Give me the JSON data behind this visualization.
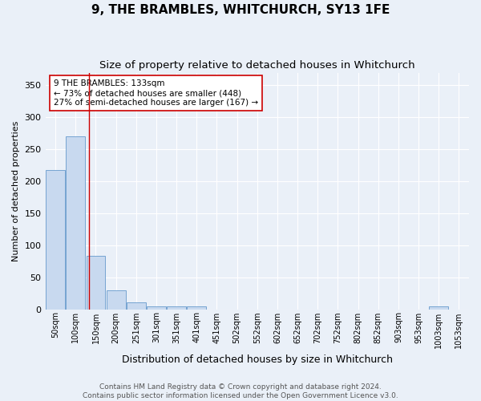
{
  "title": "9, THE BRAMBLES, WHITCHURCH, SY13 1FE",
  "subtitle": "Size of property relative to detached houses in Whitchurch",
  "xlabel": "Distribution of detached houses by size in Whitchurch",
  "ylabel": "Number of detached properties",
  "bin_labels": [
    "50sqm",
    "100sqm",
    "150sqm",
    "200sqm",
    "251sqm",
    "301sqm",
    "351sqm",
    "401sqm",
    "451sqm",
    "502sqm",
    "552sqm",
    "602sqm",
    "652sqm",
    "702sqm",
    "752sqm",
    "802sqm",
    "852sqm",
    "903sqm",
    "953sqm",
    "1003sqm",
    "1053sqm"
  ],
  "bar_heights": [
    218,
    270,
    84,
    29,
    11,
    5,
    4,
    4,
    0,
    0,
    0,
    0,
    0,
    0,
    0,
    0,
    0,
    0,
    0,
    4,
    0
  ],
  "bar_color": "#c8d9ef",
  "bar_edge_color": "#6699cc",
  "property_bin_index": 1.66,
  "annotation_text": "9 THE BRAMBLES: 133sqm\n← 73% of detached houses are smaller (448)\n27% of semi-detached houses are larger (167) →",
  "annotation_box_color": "#ffffff",
  "annotation_box_edgecolor": "#cc0000",
  "property_line_color": "#cc0000",
  "ylim": [
    0,
    370
  ],
  "yticks": [
    0,
    50,
    100,
    150,
    200,
    250,
    300,
    350
  ],
  "background_color": "#eaf0f8",
  "grid_color": "#ffffff",
  "footer_text": "Contains HM Land Registry data © Crown copyright and database right 2024.\nContains public sector information licensed under the Open Government Licence v3.0.",
  "title_fontsize": 11,
  "subtitle_fontsize": 9.5,
  "xlabel_fontsize": 9,
  "ylabel_fontsize": 8,
  "annotation_fontsize": 7.5,
  "footer_fontsize": 6.5
}
